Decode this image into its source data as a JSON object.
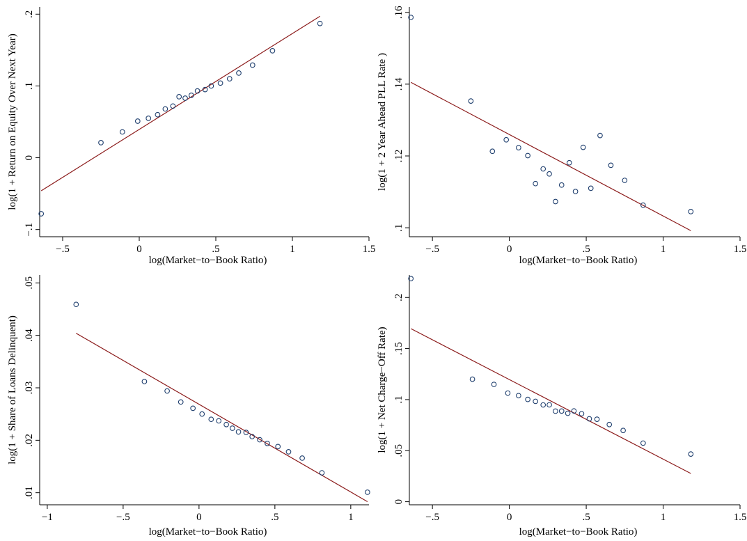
{
  "chart_data": [
    {
      "type": "scatter",
      "xlabel": "log(Market−to−Book Ratio)",
      "ylabel": "log(1 + Return on Equity Over Next Year)",
      "xlim": [
        -0.65,
        1.5
      ],
      "ylim": [
        -0.11,
        0.21
      ],
      "xticks": [
        -0.5,
        0,
        0.5,
        1,
        1.5
      ],
      "xtick_labels": [
        "−.5",
        "0",
        ".5",
        "1",
        "1.5"
      ],
      "yticks": [
        -0.1,
        0,
        0.1,
        0.2
      ],
      "ytick_labels": [
        "−.1",
        "0",
        ".1",
        ".2"
      ],
      "grid": false,
      "points": {
        "x": [
          -0.64,
          -0.25,
          -0.11,
          -0.01,
          0.06,
          0.12,
          0.17,
          0.22,
          0.26,
          0.3,
          0.34,
          0.38,
          0.43,
          0.47,
          0.53,
          0.59,
          0.65,
          0.74,
          0.87,
          1.18
        ],
        "y": [
          -0.078,
          0.021,
          0.036,
          0.051,
          0.055,
          0.06,
          0.068,
          0.072,
          0.085,
          0.083,
          0.087,
          0.093,
          0.095,
          0.1,
          0.104,
          0.11,
          0.118,
          0.129,
          0.149,
          0.187
        ]
      },
      "fit_line": {
        "x": [
          -0.64,
          1.18
        ],
        "y": [
          -0.046,
          0.197
        ]
      }
    },
    {
      "type": "scatter",
      "xlabel": "log(Market−to−Book Ratio)",
      "ylabel": "log(1 + 2 Year Ahead PLL Rate )",
      "xlim": [
        -0.65,
        1.5
      ],
      "ylim": [
        0.0975,
        0.1615
      ],
      "xticks": [
        -0.5,
        0,
        0.5,
        1,
        1.5
      ],
      "xtick_labels": [
        "−.5",
        "0",
        ".5",
        "1",
        "1.5"
      ],
      "yticks": [
        0.1,
        0.12,
        0.14,
        0.16
      ],
      "ytick_labels": [
        ".1",
        ".12",
        ".14",
        ".16"
      ],
      "grid": false,
      "points": {
        "x": [
          -0.64,
          -0.25,
          -0.11,
          -0.02,
          0.06,
          0.12,
          0.17,
          0.22,
          0.26,
          0.3,
          0.34,
          0.39,
          0.43,
          0.48,
          0.53,
          0.59,
          0.66,
          0.75,
          0.87,
          1.18
        ],
        "y": [
          0.1586,
          0.1353,
          0.1213,
          0.1245,
          0.1223,
          0.1201,
          0.1123,
          0.1164,
          0.115,
          0.1073,
          0.1119,
          0.1181,
          0.1101,
          0.1224,
          0.111,
          0.1257,
          0.1174,
          0.1132,
          0.1063,
          0.1045
        ]
      },
      "fit_line": {
        "x": [
          -0.64,
          1.18
        ],
        "y": [
          0.1405,
          0.0992
        ]
      }
    },
    {
      "type": "scatter",
      "xlabel": "log(Market−to−Book Ratio)",
      "ylabel": "log(1 + Share of Loans Delinquent)",
      "xlim": [
        -1.05,
        1.12
      ],
      "ylim": [
        0.0077,
        0.0515
      ],
      "xticks": [
        -1,
        -0.5,
        0,
        0.5,
        1
      ],
      "xtick_labels": [
        "−1",
        "−.5",
        "0",
        ".5",
        "1"
      ],
      "yticks": [
        0.01,
        0.02,
        0.03,
        0.04,
        0.05
      ],
      "ytick_labels": [
        ".01",
        ".02",
        ".03",
        ".04",
        ".05"
      ],
      "grid": false,
      "points": {
        "x": [
          -0.81,
          -0.36,
          -0.21,
          -0.12,
          -0.04,
          0.02,
          0.08,
          0.13,
          0.18,
          0.22,
          0.26,
          0.31,
          0.35,
          0.4,
          0.45,
          0.52,
          0.59,
          0.68,
          0.81,
          1.11
        ],
        "y": [
          0.0459,
          0.0312,
          0.0294,
          0.0273,
          0.0261,
          0.025,
          0.024,
          0.0237,
          0.023,
          0.0223,
          0.0216,
          0.0215,
          0.0207,
          0.0201,
          0.0194,
          0.0188,
          0.0178,
          0.0166,
          0.0138,
          0.0101
        ]
      },
      "fit_line": {
        "x": [
          -0.81,
          1.11
        ],
        "y": [
          0.0404,
          0.0083
        ]
      }
    },
    {
      "type": "scatter",
      "xlabel": "log(Market−to−Book Ratio)",
      "ylabel": "log(1 + Net Charge−Off Rate)",
      "xlim": [
        -0.65,
        1.5
      ],
      "ylim": [
        -0.003,
        0.222
      ],
      "xticks": [
        -0.5,
        0,
        0.5,
        1,
        1.5
      ],
      "xtick_labels": [
        "−.5",
        "0",
        ".5",
        "1",
        "1.5"
      ],
      "yticks": [
        0,
        0.05,
        0.1,
        0.15,
        0.2
      ],
      "ytick_labels": [
        "0",
        ".05",
        ".1",
        ".15",
        ".2"
      ],
      "grid": false,
      "points": {
        "x": [
          -0.64,
          -0.24,
          -0.1,
          -0.01,
          0.06,
          0.12,
          0.17,
          0.22,
          0.26,
          0.3,
          0.34,
          0.38,
          0.42,
          0.47,
          0.52,
          0.57,
          0.65,
          0.74,
          0.87,
          1.18
        ],
        "y": [
          0.2185,
          0.12,
          0.1149,
          0.1064,
          0.1039,
          0.1002,
          0.0983,
          0.0948,
          0.0949,
          0.0887,
          0.0888,
          0.0866,
          0.0889,
          0.0862,
          0.0812,
          0.0808,
          0.0756,
          0.0698,
          0.0574,
          0.0467
        ]
      },
      "fit_line": {
        "x": [
          -0.64,
          1.18
        ],
        "y": [
          0.1695,
          0.0277
        ]
      }
    }
  ]
}
